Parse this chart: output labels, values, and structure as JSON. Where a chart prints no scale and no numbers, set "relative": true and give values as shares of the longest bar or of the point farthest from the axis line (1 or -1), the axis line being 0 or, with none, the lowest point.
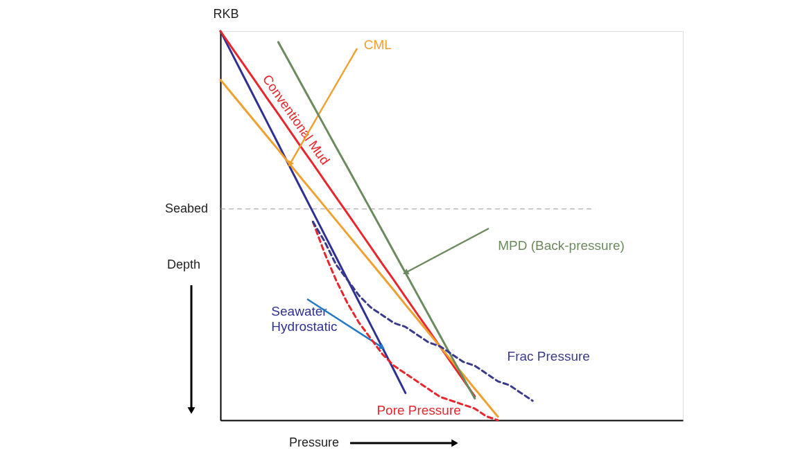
{
  "chart_data": {
    "type": "line",
    "relative": true,
    "xlabel": "Pressure",
    "ylabel": "Depth",
    "grid": false,
    "marker": "none",
    "categories": [
      null,
      null,
      null,
      null,
      null,
      null,
      null,
      null,
      null,
      null,
      null,
      null,
      null,
      null,
      null,
      null,
      null,
      null,
      null,
      null,
      null,
      null,
      null,
      null,
      null,
      null,
      null,
      null,
      null,
      null,
      null,
      null,
      null,
      null,
      null,
      null,
      null,
      null,
      null,
      null,
      null
    ],
    "series": [
      {
        "name": "Seawater Hydrostatic",
        "color": "#2e3192",
        "line_style": "solid",
        "values": [
          1,
          0.942,
          0.884,
          0.826,
          0.768,
          0.71,
          0.651,
          0.593,
          0.535,
          0.477,
          0.419,
          0.361,
          0.303,
          0.245,
          0.187,
          0.129,
          0.07,
          null,
          null,
          null,
          null,
          null,
          null,
          null,
          null,
          null,
          null,
          null,
          null,
          null,
          null,
          null,
          null,
          null,
          null,
          null,
          null,
          null,
          null,
          null,
          null
        ]
      },
      {
        "name": "Conventional Mud",
        "color": "#e8262b",
        "line_style": "solid",
        "values": [
          1,
          0.957,
          0.915,
          0.872,
          0.829,
          0.787,
          0.744,
          0.701,
          0.659,
          0.616,
          0.573,
          0.531,
          0.488,
          0.445,
          0.402,
          0.36,
          0.317,
          0.274,
          0.232,
          0.189,
          0.146,
          0.104,
          0.061,
          null,
          null,
          null,
          null,
          null,
          null,
          null,
          null,
          null,
          null,
          null,
          null,
          null,
          null,
          null,
          null,
          null,
          null
        ]
      },
      {
        "name": "CML",
        "color": "#f0a030",
        "line_style": "solid",
        "values": [
          0.875,
          0.839,
          0.803,
          0.767,
          0.731,
          0.695,
          0.658,
          0.622,
          0.586,
          0.55,
          0.514,
          0.478,
          0.442,
          0.406,
          0.37,
          0.334,
          0.297,
          0.261,
          0.225,
          0.189,
          0.153,
          0.117,
          0.081,
          0.045,
          0.009,
          null,
          null,
          null,
          null,
          null,
          null,
          null,
          null,
          null,
          null,
          null,
          null,
          null,
          null,
          null,
          null
        ]
      },
      {
        "name": "MPD (Back-pressure)",
        "color": "#6b8a5e",
        "line_style": "solid",
        "values": [
          null,
          null,
          null,
          null,
          null,
          0.972,
          0.918,
          0.864,
          0.81,
          0.756,
          0.702,
          0.649,
          0.595,
          0.541,
          0.487,
          0.433,
          0.379,
          0.325,
          0.271,
          0.217,
          0.163,
          0.109,
          0.056,
          null,
          null,
          null,
          null,
          null,
          null,
          null,
          null,
          null,
          null,
          null,
          null,
          null,
          null,
          null,
          null,
          null,
          null
        ]
      },
      {
        "name": "Pore Pressure",
        "color": "#e8262b",
        "line_style": "dashed",
        "values": [
          null,
          null,
          null,
          null,
          null,
          null,
          null,
          null,
          0.51,
          0.43,
          0.36,
          0.3,
          0.25,
          0.21,
          0.17,
          0.14,
          0.12,
          0.1,
          0.08,
          0.06,
          0.05,
          0.04,
          0.03,
          0.01,
          0,
          null,
          null,
          null,
          null,
          null,
          null,
          null,
          null,
          null,
          null,
          null,
          null,
          null,
          null,
          null,
          null
        ]
      },
      {
        "name": "Frac Pressure",
        "color": "#3a3a8c",
        "line_style": "dashed",
        "values": [
          null,
          null,
          null,
          null,
          null,
          null,
          null,
          null,
          0.51,
          0.46,
          0.4,
          0.36,
          0.32,
          0.29,
          0.27,
          0.25,
          0.24,
          0.22,
          0.2,
          0.19,
          0.17,
          0.15,
          0.14,
          0.12,
          0.1,
          0.09,
          0.07,
          0.05,
          null,
          null,
          null,
          null,
          null,
          null,
          null,
          null,
          null,
          null,
          null,
          null,
          null
        ]
      }
    ],
    "ref_lines": [
      {
        "axis": "y",
        "value": 0.543,
        "label": "Seabed",
        "color": "#999999",
        "line_style": "dashed"
      }
    ],
    "annotations": [
      "RKB"
    ]
  }
}
